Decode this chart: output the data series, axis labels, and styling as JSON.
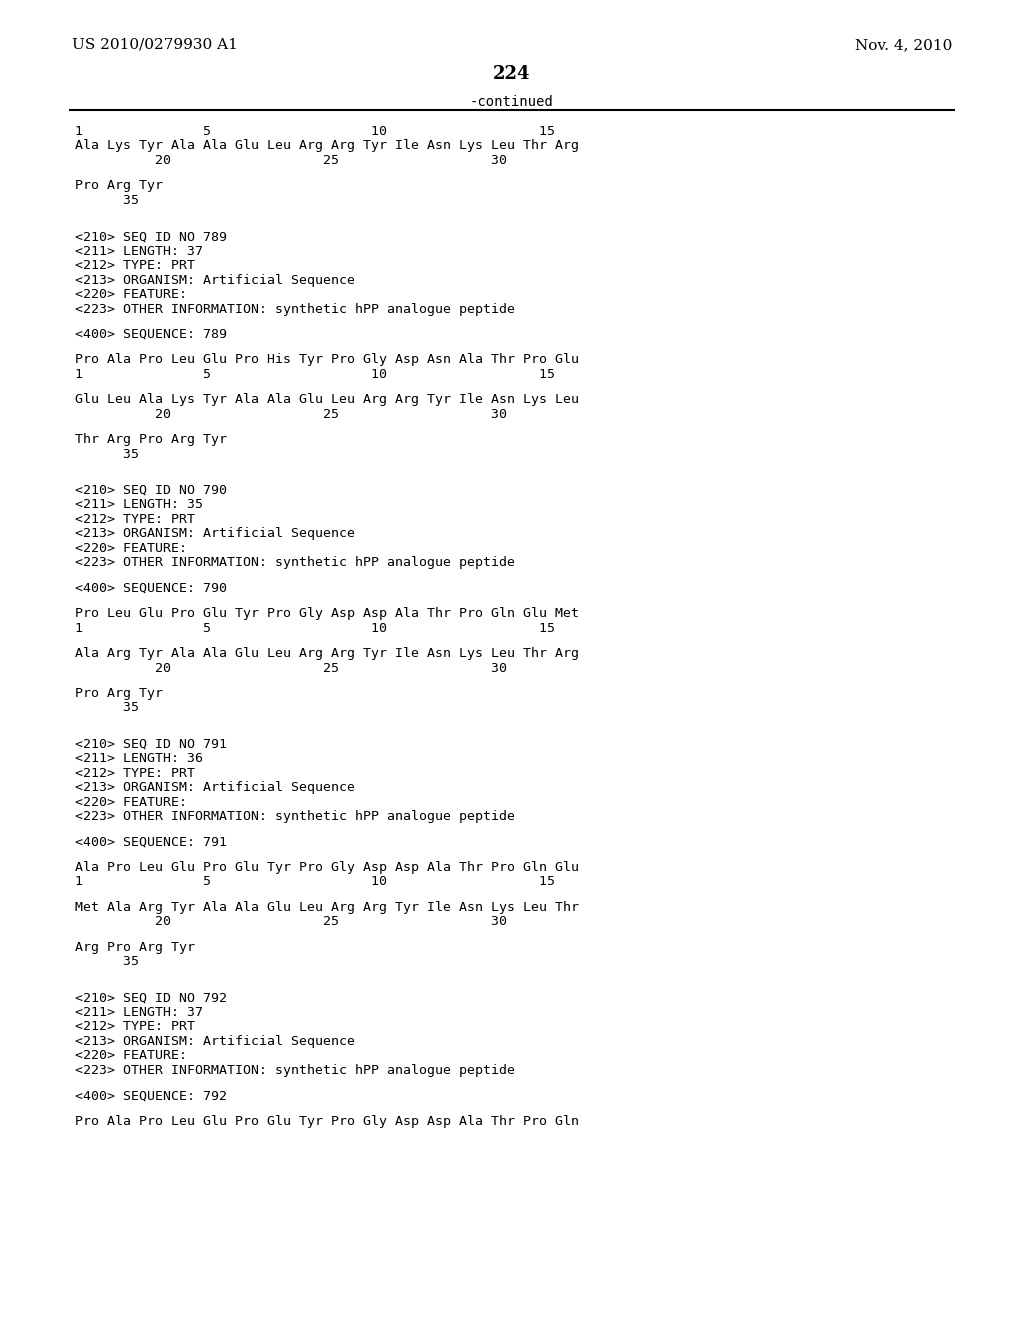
{
  "header_left": "US 2010/0279930 A1",
  "header_right": "Nov. 4, 2010",
  "page_number": "224",
  "continued_text": "-continued",
  "background_color": "#ffffff",
  "text_color": "#000000",
  "content": [
    {
      "type": "ruler",
      "text": "1               5                    10                   15"
    },
    {
      "type": "seq_line",
      "text": "Ala Lys Tyr Ala Ala Glu Leu Arg Arg Tyr Ile Asn Lys Leu Thr Arg"
    },
    {
      "type": "ruler2",
      "text": "          20                   25                   30"
    },
    {
      "type": "blank"
    },
    {
      "type": "seq_line",
      "text": "Pro Arg Tyr"
    },
    {
      "type": "ruler3",
      "text": "      35"
    },
    {
      "type": "blank"
    },
    {
      "type": "blank"
    },
    {
      "type": "meta",
      "text": "<210> SEQ ID NO 789"
    },
    {
      "type": "meta",
      "text": "<211> LENGTH: 37"
    },
    {
      "type": "meta",
      "text": "<212> TYPE: PRT"
    },
    {
      "type": "meta",
      "text": "<213> ORGANISM: Artificial Sequence"
    },
    {
      "type": "meta",
      "text": "<220> FEATURE:"
    },
    {
      "type": "meta",
      "text": "<223> OTHER INFORMATION: synthetic hPP analogue peptide"
    },
    {
      "type": "blank"
    },
    {
      "type": "meta",
      "text": "<400> SEQUENCE: 789"
    },
    {
      "type": "blank"
    },
    {
      "type": "seq_line",
      "text": "Pro Ala Pro Leu Glu Pro His Tyr Pro Gly Asp Asn Ala Thr Pro Glu"
    },
    {
      "type": "ruler",
      "text": "1               5                    10                   15"
    },
    {
      "type": "blank"
    },
    {
      "type": "seq_line",
      "text": "Glu Leu Ala Lys Tyr Ala Ala Glu Leu Arg Arg Tyr Ile Asn Lys Leu"
    },
    {
      "type": "ruler2",
      "text": "          20                   25                   30"
    },
    {
      "type": "blank"
    },
    {
      "type": "seq_line",
      "text": "Thr Arg Pro Arg Tyr"
    },
    {
      "type": "ruler3",
      "text": "      35"
    },
    {
      "type": "blank"
    },
    {
      "type": "blank"
    },
    {
      "type": "meta",
      "text": "<210> SEQ ID NO 790"
    },
    {
      "type": "meta",
      "text": "<211> LENGTH: 35"
    },
    {
      "type": "meta",
      "text": "<212> TYPE: PRT"
    },
    {
      "type": "meta",
      "text": "<213> ORGANISM: Artificial Sequence"
    },
    {
      "type": "meta",
      "text": "<220> FEATURE:"
    },
    {
      "type": "meta",
      "text": "<223> OTHER INFORMATION: synthetic hPP analogue peptide"
    },
    {
      "type": "blank"
    },
    {
      "type": "meta",
      "text": "<400> SEQUENCE: 790"
    },
    {
      "type": "blank"
    },
    {
      "type": "seq_line",
      "text": "Pro Leu Glu Pro Glu Tyr Pro Gly Asp Asp Ala Thr Pro Gln Glu Met"
    },
    {
      "type": "ruler",
      "text": "1               5                    10                   15"
    },
    {
      "type": "blank"
    },
    {
      "type": "seq_line",
      "text": "Ala Arg Tyr Ala Ala Glu Leu Arg Arg Tyr Ile Asn Lys Leu Thr Arg"
    },
    {
      "type": "ruler2",
      "text": "          20                   25                   30"
    },
    {
      "type": "blank"
    },
    {
      "type": "seq_line",
      "text": "Pro Arg Tyr"
    },
    {
      "type": "ruler3",
      "text": "      35"
    },
    {
      "type": "blank"
    },
    {
      "type": "blank"
    },
    {
      "type": "meta",
      "text": "<210> SEQ ID NO 791"
    },
    {
      "type": "meta",
      "text": "<211> LENGTH: 36"
    },
    {
      "type": "meta",
      "text": "<212> TYPE: PRT"
    },
    {
      "type": "meta",
      "text": "<213> ORGANISM: Artificial Sequence"
    },
    {
      "type": "meta",
      "text": "<220> FEATURE:"
    },
    {
      "type": "meta",
      "text": "<223> OTHER INFORMATION: synthetic hPP analogue peptide"
    },
    {
      "type": "blank"
    },
    {
      "type": "meta",
      "text": "<400> SEQUENCE: 791"
    },
    {
      "type": "blank"
    },
    {
      "type": "seq_line",
      "text": "Ala Pro Leu Glu Pro Glu Tyr Pro Gly Asp Asp Ala Thr Pro Gln Glu"
    },
    {
      "type": "ruler",
      "text": "1               5                    10                   15"
    },
    {
      "type": "blank"
    },
    {
      "type": "seq_line",
      "text": "Met Ala Arg Tyr Ala Ala Glu Leu Arg Arg Tyr Ile Asn Lys Leu Thr"
    },
    {
      "type": "ruler2",
      "text": "          20                   25                   30"
    },
    {
      "type": "blank"
    },
    {
      "type": "seq_line",
      "text": "Arg Pro Arg Tyr"
    },
    {
      "type": "ruler3",
      "text": "      35"
    },
    {
      "type": "blank"
    },
    {
      "type": "blank"
    },
    {
      "type": "meta",
      "text": "<210> SEQ ID NO 792"
    },
    {
      "type": "meta",
      "text": "<211> LENGTH: 37"
    },
    {
      "type": "meta",
      "text": "<212> TYPE: PRT"
    },
    {
      "type": "meta",
      "text": "<213> ORGANISM: Artificial Sequence"
    },
    {
      "type": "meta",
      "text": "<220> FEATURE:"
    },
    {
      "type": "meta",
      "text": "<223> OTHER INFORMATION: synthetic hPP analogue peptide"
    },
    {
      "type": "blank"
    },
    {
      "type": "meta",
      "text": "<400> SEQUENCE: 792"
    },
    {
      "type": "blank"
    },
    {
      "type": "seq_line",
      "text": "Pro Ala Pro Leu Glu Pro Glu Tyr Pro Gly Asp Asp Ala Thr Pro Gln"
    }
  ]
}
